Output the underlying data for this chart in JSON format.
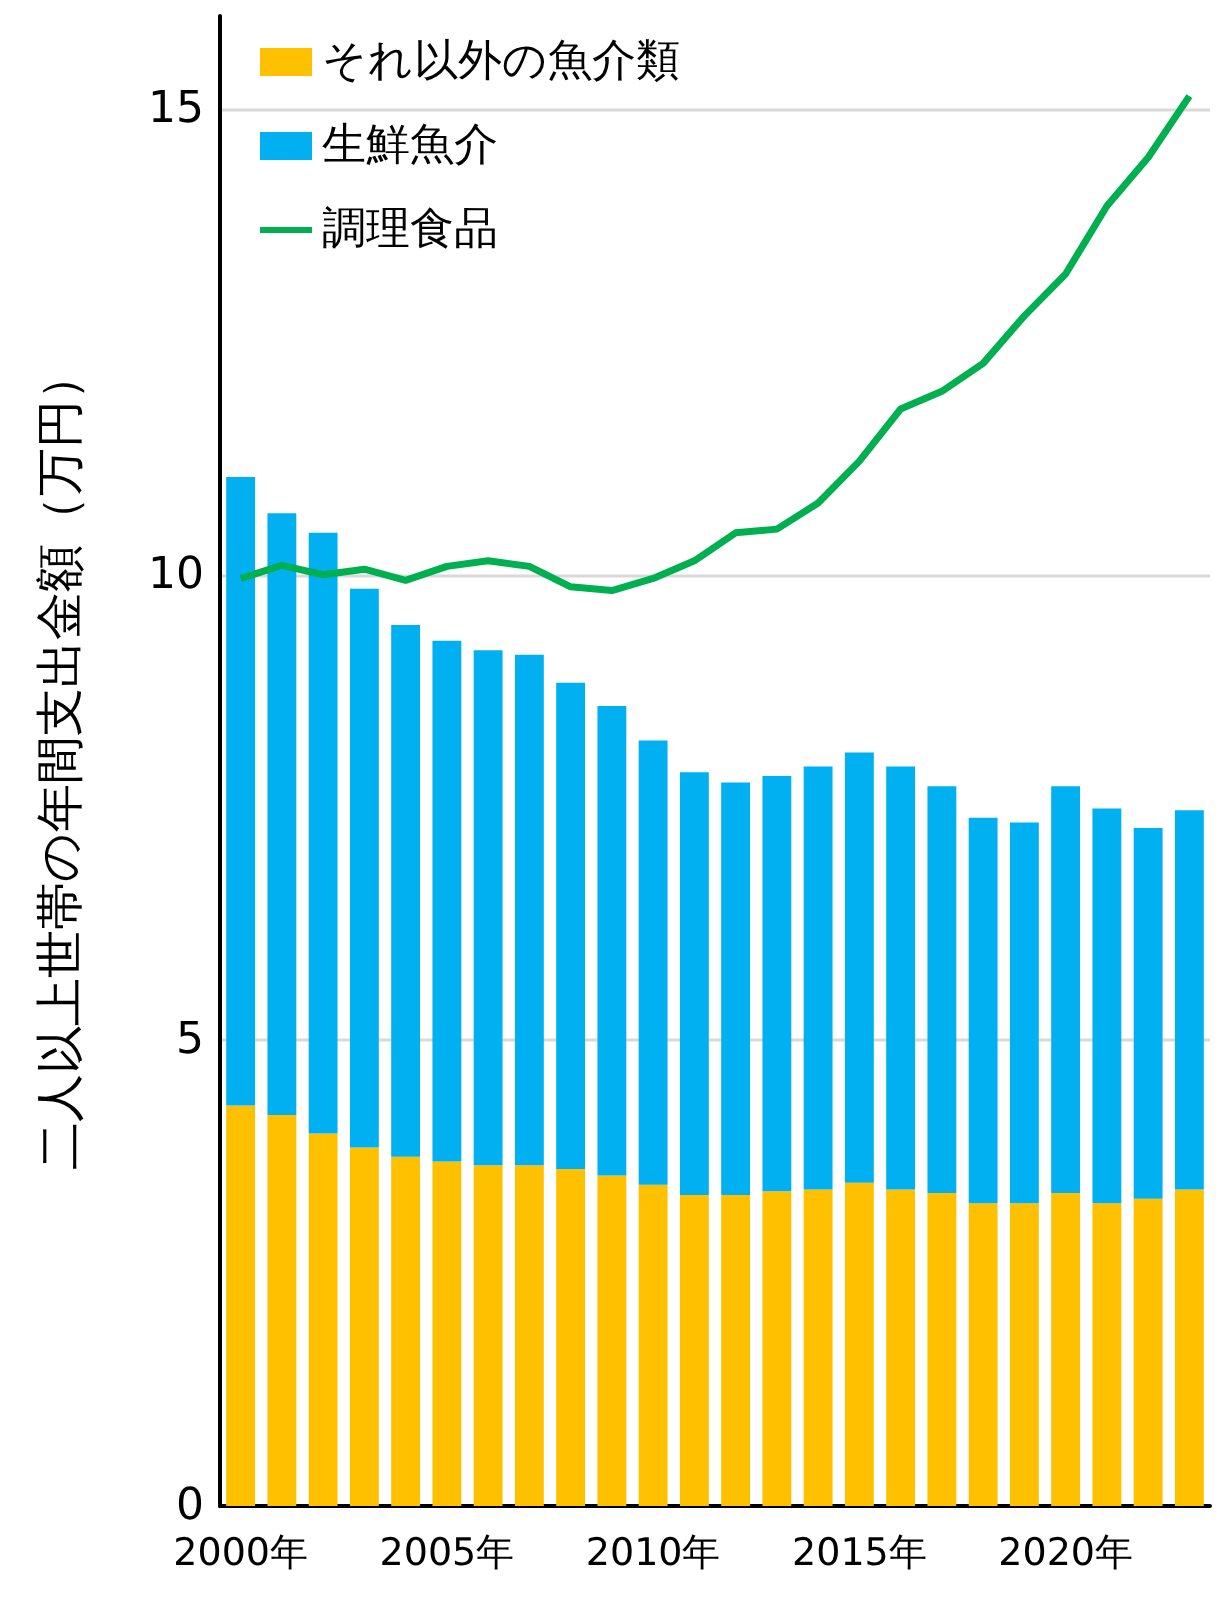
{
  "chart_data": {
    "type": "bar",
    "stacked": true,
    "ylabel": "二人以上世帯の年間支出金額（万円）",
    "categories": [
      "2000年",
      null,
      null,
      null,
      null,
      "2005年",
      null,
      null,
      null,
      null,
      "2010年",
      null,
      null,
      null,
      null,
      "2015年",
      null,
      null,
      null,
      null,
      "2020年",
      null,
      null,
      null
    ],
    "series": [
      {
        "name": "それ以外の魚介類",
        "color": "#ffc000",
        "values": [
          4.3,
          4.2,
          4.0,
          3.85,
          3.75,
          3.7,
          3.66,
          3.66,
          3.62,
          3.55,
          3.45,
          3.34,
          3.34,
          3.38,
          3.4,
          3.47,
          3.4,
          3.36,
          3.25,
          3.25,
          3.36,
          3.25,
          3.3,
          3.4
        ]
      },
      {
        "name": "生鮮魚介",
        "color": "#00b0f0",
        "values": [
          6.75,
          6.46,
          6.45,
          6.0,
          5.71,
          5.59,
          5.53,
          5.48,
          5.22,
          5.04,
          4.77,
          4.54,
          4.43,
          4.46,
          4.54,
          4.62,
          4.54,
          4.37,
          4.14,
          4.09,
          4.37,
          4.24,
          3.98,
          4.07
        ]
      },
      {
        "name": "調理食品",
        "type": "line",
        "color": "#00b050",
        "values": [
          9.96,
          10.1,
          10.0,
          10.06,
          9.94,
          10.09,
          10.15,
          10.09,
          9.87,
          9.83,
          9.96,
          10.15,
          10.45,
          10.49,
          10.77,
          11.22,
          11.78,
          11.97,
          12.27,
          12.78,
          13.23,
          13.96,
          14.48,
          15.14
        ]
      }
    ],
    "ylim": [
      0,
      16
    ],
    "yticks": [
      0,
      5,
      10,
      15
    ],
    "grid": "y",
    "legend": "top left",
    "marker": "none"
  }
}
